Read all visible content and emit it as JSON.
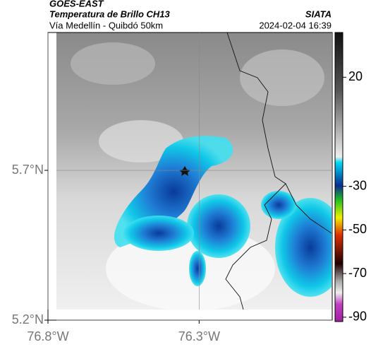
{
  "chart_data": {
    "type": "map",
    "title": "GOES-EAST",
    "subtitle": "Temperatura de Brillo CH13",
    "caption": "Vía Medellín - Quibdó 50km",
    "source": "SIATA",
    "timestamp": "2024-02-04 16:39",
    "xlim": [
      -76.8,
      -75.86
    ],
    "ylim": [
      5.2,
      6.16
    ],
    "xticks": [
      {
        "value": -76.8,
        "label": "76.8°W"
      },
      {
        "value": -76.3,
        "label": "76.3°W"
      }
    ],
    "yticks": [
      {
        "value": 5.2,
        "label": "5.2°N"
      },
      {
        "value": 5.7,
        "label": "5.7°N"
      }
    ],
    "grid": true,
    "clim": [
      -92,
      40.5
    ],
    "cticks": [
      20,
      -30,
      -50,
      -70,
      -90
    ]
  }
}
